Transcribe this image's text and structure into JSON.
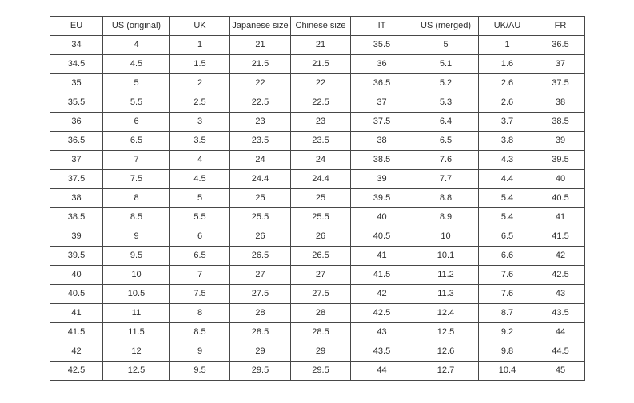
{
  "chart_data": {
    "type": "table",
    "columns": [
      "EU",
      "US (original)",
      "UK",
      "Japanese size",
      "Chinese size",
      "IT",
      "US (merged)",
      "UK/AU",
      "FR"
    ],
    "rows": [
      [
        "34",
        "4",
        "1",
        "21",
        "21",
        "35.5",
        "5",
        "1",
        "36.5"
      ],
      [
        "34.5",
        "4.5",
        "1.5",
        "21.5",
        "21.5",
        "36",
        "5.1",
        "1.6",
        "37"
      ],
      [
        "35",
        "5",
        "2",
        "22",
        "22",
        "36.5",
        "5.2",
        "2.6",
        "37.5"
      ],
      [
        "35.5",
        "5.5",
        "2.5",
        "22.5",
        "22.5",
        "37",
        "5.3",
        "2.6",
        "38"
      ],
      [
        "36",
        "6",
        "3",
        "23",
        "23",
        "37.5",
        "6.4",
        "3.7",
        "38.5"
      ],
      [
        "36.5",
        "6.5",
        "3.5",
        "23.5",
        "23.5",
        "38",
        "6.5",
        "3.8",
        "39"
      ],
      [
        "37",
        "7",
        "4",
        "24",
        "24",
        "38.5",
        "7.6",
        "4.3",
        "39.5"
      ],
      [
        "37.5",
        "7.5",
        "4.5",
        "24.4",
        "24.4",
        "39",
        "7.7",
        "4.4",
        "40"
      ],
      [
        "38",
        "8",
        "5",
        "25",
        "25",
        "39.5",
        "8.8",
        "5.4",
        "40.5"
      ],
      [
        "38.5",
        "8.5",
        "5.5",
        "25.5",
        "25.5",
        "40",
        "8.9",
        "5.4",
        "41"
      ],
      [
        "39",
        "9",
        "6",
        "26",
        "26",
        "40.5",
        "10",
        "6.5",
        "41.5"
      ],
      [
        "39.5",
        "9.5",
        "6.5",
        "26.5",
        "26.5",
        "41",
        "10.1",
        "6.6",
        "42"
      ],
      [
        "40",
        "10",
        "7",
        "27",
        "27",
        "41.5",
        "11.2",
        "7.6",
        "42.5"
      ],
      [
        "40.5",
        "10.5",
        "7.5",
        "27.5",
        "27.5",
        "42",
        "11.3",
        "7.6",
        "43"
      ],
      [
        "41",
        "11",
        "8",
        "28",
        "28",
        "42.5",
        "12.4",
        "8.7",
        "43.5"
      ],
      [
        "41.5",
        "11.5",
        "8.5",
        "28.5",
        "28.5",
        "43",
        "12.5",
        "9.2",
        "44"
      ],
      [
        "42",
        "12",
        "9",
        "29",
        "29",
        "43.5",
        "12.6",
        "9.8",
        "44.5"
      ],
      [
        "42.5",
        "12.5",
        "9.5",
        "29.5",
        "29.5",
        "44",
        "12.7",
        "10.4",
        "45"
      ]
    ]
  },
  "colors": {
    "border": "#474747",
    "text": "#2e2e2e",
    "background": "#ffffff"
  }
}
